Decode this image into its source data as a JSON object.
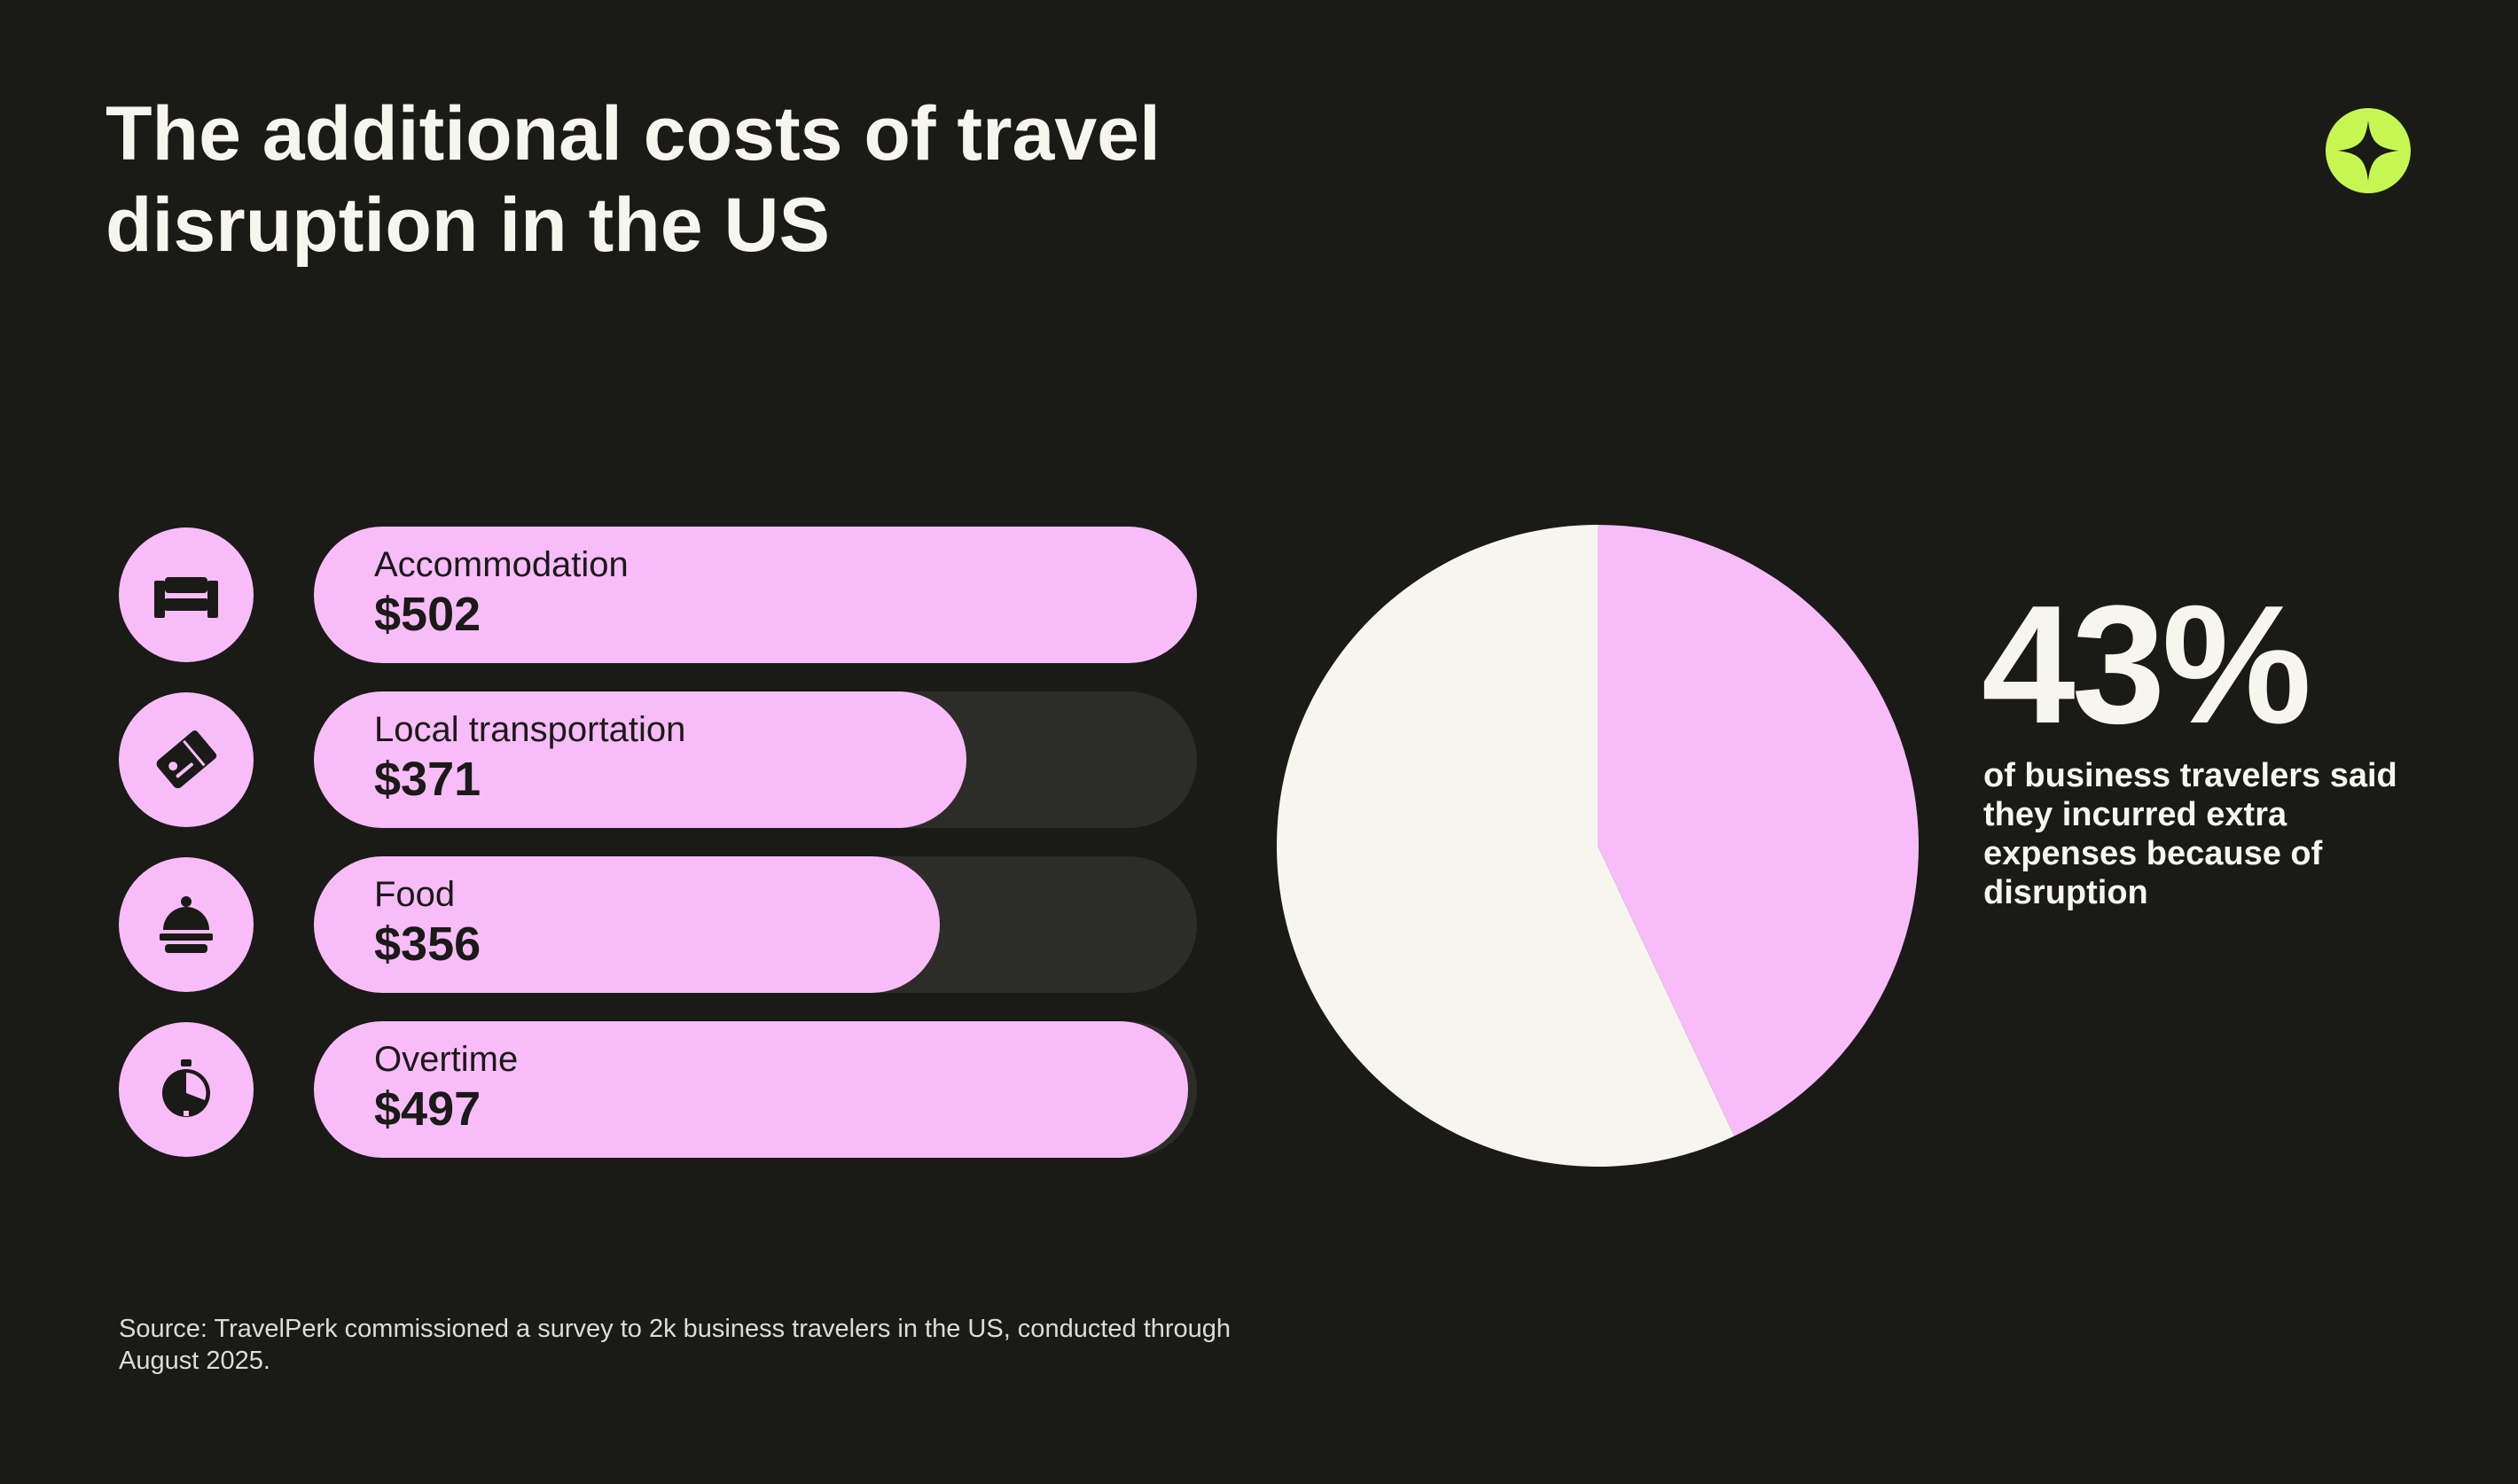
{
  "title": "The additional costs of travel disruption in the US",
  "brand": {
    "logo_icon": "travelperk-plus-icon",
    "accent": "#c6f652"
  },
  "colors": {
    "background": "#1a1a17",
    "bar_fill": "#f8bcf9",
    "bar_track": "#2c2c28",
    "pie_rest": "#f7f6ee",
    "pie_share": "#f8bcf9"
  },
  "chart_data": [
    {
      "type": "bar",
      "orientation": "horizontal",
      "categories": [
        "Accommodation",
        "Local transportation",
        "Food",
        "Overtime"
      ],
      "values": [
        502,
        371,
        356,
        497
      ],
      "value_labels": [
        "$502",
        "$371",
        "$356",
        "$497"
      ],
      "icons": [
        "bed-icon",
        "ticket-icon",
        "cloche-icon",
        "stopwatch-icon"
      ],
      "xlim": [
        0,
        502
      ]
    },
    {
      "type": "pie",
      "values": [
        43,
        57
      ],
      "highlight_label": "43%",
      "caption": "of business travelers said they incurred extra expenses because of disruption"
    }
  ],
  "source": "Source: TravelPerk commissioned a survey to 2k business travelers in the US, conducted through August 2025."
}
